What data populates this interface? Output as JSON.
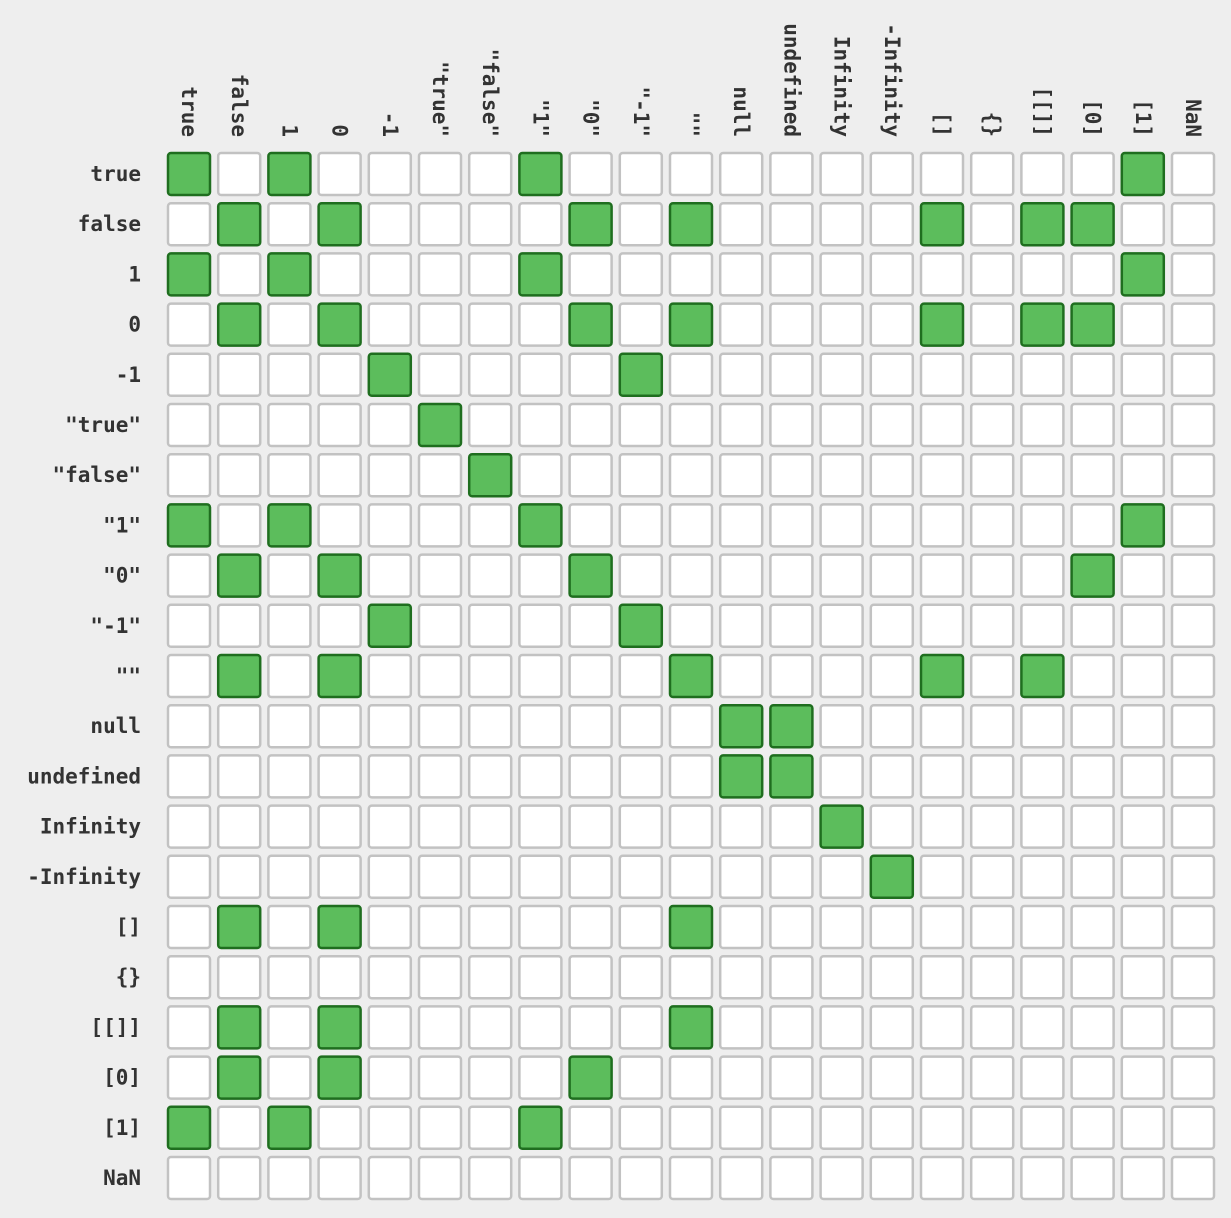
{
  "chart_data": {
    "type": "heatmap",
    "title": "",
    "xlabel": "",
    "ylabel": "",
    "labels": [
      "true",
      "false",
      "1",
      "0",
      "-1",
      "\"true\"",
      "\"false\"",
      "\"1\"",
      "\"0\"",
      "\"-1\"",
      "\"\"",
      "null",
      "undefined",
      "Infinity",
      "-Infinity",
      "[]",
      "{}",
      "[[]]",
      "[0]",
      "[1]",
      "NaN"
    ],
    "matrix": [
      [
        1,
        0,
        1,
        0,
        0,
        0,
        0,
        1,
        0,
        0,
        0,
        0,
        0,
        0,
        0,
        0,
        0,
        0,
        0,
        1,
        0
      ],
      [
        0,
        1,
        0,
        1,
        0,
        0,
        0,
        0,
        1,
        0,
        1,
        0,
        0,
        0,
        0,
        1,
        0,
        1,
        1,
        0,
        0
      ],
      [
        1,
        0,
        1,
        0,
        0,
        0,
        0,
        1,
        0,
        0,
        0,
        0,
        0,
        0,
        0,
        0,
        0,
        0,
        0,
        1,
        0
      ],
      [
        0,
        1,
        0,
        1,
        0,
        0,
        0,
        0,
        1,
        0,
        1,
        0,
        0,
        0,
        0,
        1,
        0,
        1,
        1,
        0,
        0
      ],
      [
        0,
        0,
        0,
        0,
        1,
        0,
        0,
        0,
        0,
        1,
        0,
        0,
        0,
        0,
        0,
        0,
        0,
        0,
        0,
        0,
        0
      ],
      [
        0,
        0,
        0,
        0,
        0,
        1,
        0,
        0,
        0,
        0,
        0,
        0,
        0,
        0,
        0,
        0,
        0,
        0,
        0,
        0,
        0
      ],
      [
        0,
        0,
        0,
        0,
        0,
        0,
        1,
        0,
        0,
        0,
        0,
        0,
        0,
        0,
        0,
        0,
        0,
        0,
        0,
        0,
        0
      ],
      [
        1,
        0,
        1,
        0,
        0,
        0,
        0,
        1,
        0,
        0,
        0,
        0,
        0,
        0,
        0,
        0,
        0,
        0,
        0,
        1,
        0
      ],
      [
        0,
        1,
        0,
        1,
        0,
        0,
        0,
        0,
        1,
        0,
        0,
        0,
        0,
        0,
        0,
        0,
        0,
        0,
        1,
        0,
        0
      ],
      [
        0,
        0,
        0,
        0,
        1,
        0,
        0,
        0,
        0,
        1,
        0,
        0,
        0,
        0,
        0,
        0,
        0,
        0,
        0,
        0,
        0
      ],
      [
        0,
        1,
        0,
        1,
        0,
        0,
        0,
        0,
        0,
        0,
        1,
        0,
        0,
        0,
        0,
        1,
        0,
        1,
        0,
        0,
        0
      ],
      [
        0,
        0,
        0,
        0,
        0,
        0,
        0,
        0,
        0,
        0,
        0,
        1,
        1,
        0,
        0,
        0,
        0,
        0,
        0,
        0,
        0
      ],
      [
        0,
        0,
        0,
        0,
        0,
        0,
        0,
        0,
        0,
        0,
        0,
        1,
        1,
        0,
        0,
        0,
        0,
        0,
        0,
        0,
        0
      ],
      [
        0,
        0,
        0,
        0,
        0,
        0,
        0,
        0,
        0,
        0,
        0,
        0,
        0,
        1,
        0,
        0,
        0,
        0,
        0,
        0,
        0
      ],
      [
        0,
        0,
        0,
        0,
        0,
        0,
        0,
        0,
        0,
        0,
        0,
        0,
        0,
        0,
        1,
        0,
        0,
        0,
        0,
        0,
        0
      ],
      [
        0,
        1,
        0,
        1,
        0,
        0,
        0,
        0,
        0,
        0,
        1,
        0,
        0,
        0,
        0,
        0,
        0,
        0,
        0,
        0,
        0
      ],
      [
        0,
        0,
        0,
        0,
        0,
        0,
        0,
        0,
        0,
        0,
        0,
        0,
        0,
        0,
        0,
        0,
        0,
        0,
        0,
        0,
        0
      ],
      [
        0,
        1,
        0,
        1,
        0,
        0,
        0,
        0,
        0,
        0,
        1,
        0,
        0,
        0,
        0,
        0,
        0,
        0,
        0,
        0,
        0
      ],
      [
        0,
        1,
        0,
        1,
        0,
        0,
        0,
        0,
        1,
        0,
        0,
        0,
        0,
        0,
        0,
        0,
        0,
        0,
        0,
        0,
        0
      ],
      [
        1,
        0,
        1,
        0,
        0,
        0,
        0,
        1,
        0,
        0,
        0,
        0,
        0,
        0,
        0,
        0,
        0,
        0,
        0,
        0,
        0
      ],
      [
        0,
        0,
        0,
        0,
        0,
        0,
        0,
        0,
        0,
        0,
        0,
        0,
        0,
        0,
        0,
        0,
        0,
        0,
        0,
        0,
        0
      ]
    ],
    "colors": {
      "true_fill": "#5cbd5c",
      "true_border": "#1f6e1f",
      "false_fill": "#ffffff",
      "false_border": "#c2c2c2",
      "background": "#eeeeee",
      "label_text": "#333333"
    },
    "legend": "none",
    "grid": true
  }
}
